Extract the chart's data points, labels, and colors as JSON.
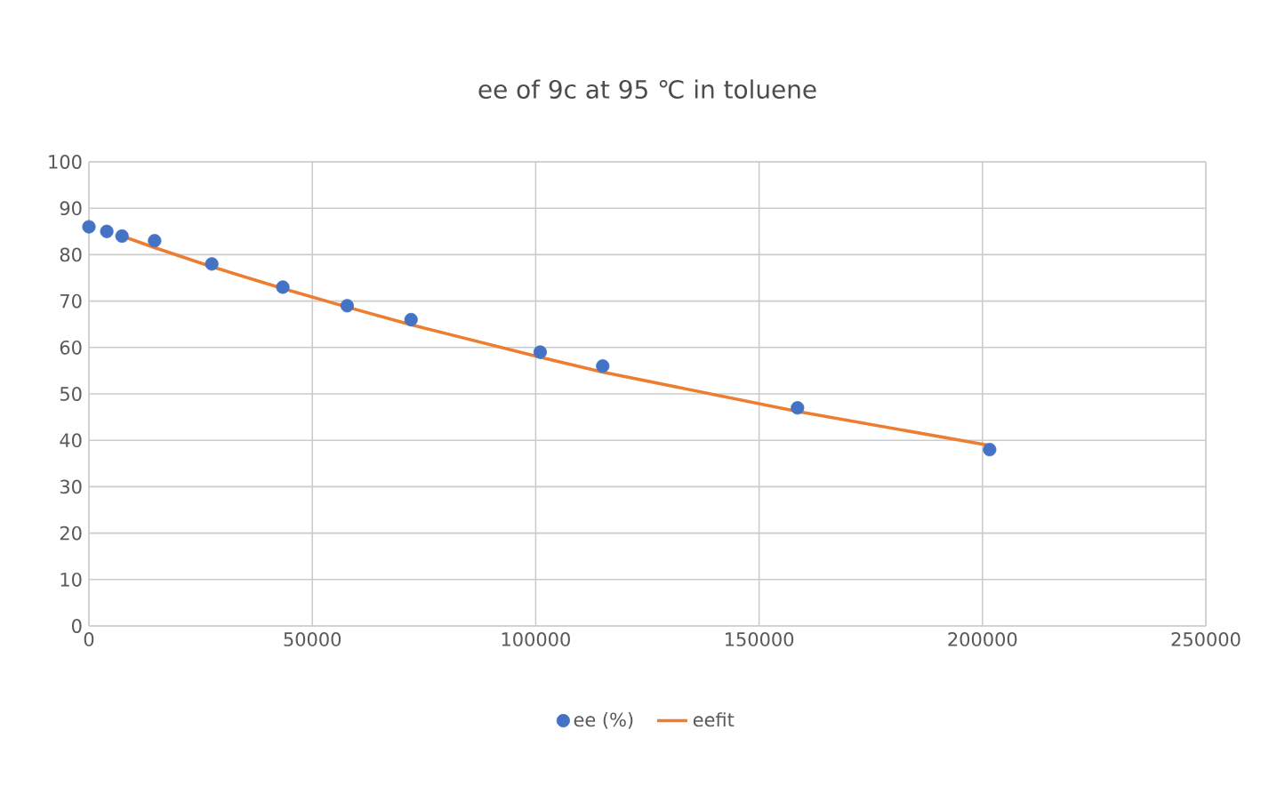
{
  "chart_data": {
    "type": "scatter",
    "title": "ee of 9c at 95 ℃ in toluene",
    "xlim": [
      0,
      250000
    ],
    "xticks": [
      0,
      50000,
      100000,
      150000,
      200000,
      250000
    ],
    "ylim": [
      0,
      100
    ],
    "yticks": [
      0,
      10,
      20,
      30,
      40,
      50,
      60,
      70,
      80,
      90,
      100
    ],
    "grid": true,
    "legend": "bottom",
    "series": [
      {
        "name": "ee (%)",
        "marker": "circle",
        "color": "#4472c4",
        "x": [
          0,
          4000,
          7400,
          14700,
          27500,
          43400,
          57800,
          72100,
          101000,
          115000,
          158600,
          201600
        ],
        "values": [
          86,
          85,
          84,
          83,
          78,
          73,
          69,
          66,
          59,
          56,
          47,
          38
        ]
      },
      {
        "name": "eefit",
        "type": "line",
        "marker": "none",
        "color": "#ed7d31",
        "x": [
          7400,
          14700,
          27500,
          43400,
          57800,
          72100,
          101000,
          115000,
          158600,
          201600
        ],
        "values": [
          84,
          81.5,
          77.4,
          72.7,
          68.7,
          64.9,
          57.9,
          54.7,
          46.2,
          38.9
        ]
      }
    ]
  }
}
